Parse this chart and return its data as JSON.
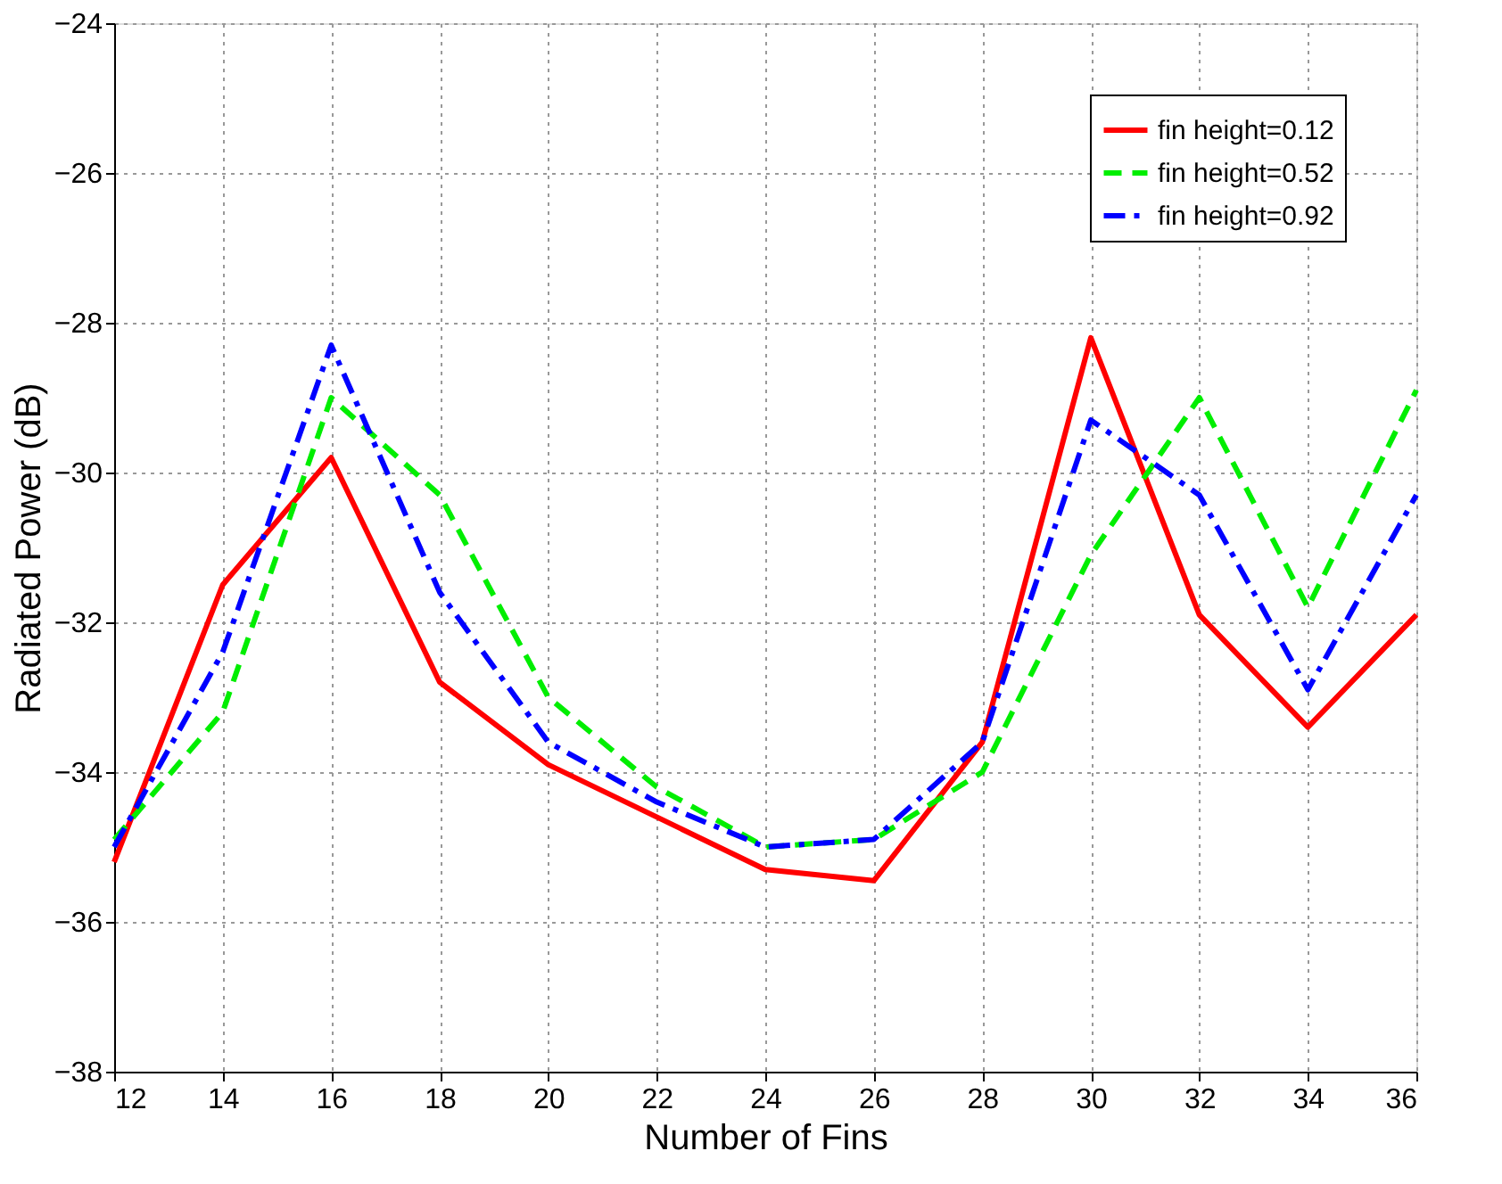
{
  "chart_data": {
    "type": "line",
    "xlabel": "Number of Fins",
    "ylabel": "Radiated Power (dB)",
    "x": [
      12,
      14,
      16,
      18,
      20,
      22,
      24,
      26,
      28,
      30,
      32,
      34,
      36
    ],
    "series": [
      {
        "name": "fin height=0.12",
        "color": "#ff0000",
        "line_style": "solid",
        "values": [
          -35.2,
          -31.5,
          -29.8,
          -32.8,
          -33.9,
          -34.6,
          -35.3,
          -35.45,
          -33.6,
          -28.2,
          -31.9,
          -33.4,
          -31.9
        ]
      },
      {
        "name": "fin height=0.52",
        "color": "#00ee00",
        "line_style": "dashed",
        "values": [
          -34.9,
          -33.2,
          -29.0,
          -30.3,
          -33.0,
          -34.2,
          -35.0,
          -34.9,
          -34.0,
          -31.1,
          -29.0,
          -31.8,
          -28.9
        ]
      },
      {
        "name": "fin height=0.92",
        "color": "#0000ff",
        "line_style": "dashdot",
        "values": [
          -35.0,
          -32.4,
          -28.3,
          -31.6,
          -33.6,
          -34.4,
          -35.0,
          -34.9,
          -33.6,
          -29.3,
          -30.3,
          -32.9,
          -30.3
        ]
      }
    ],
    "xlim": [
      12,
      36
    ],
    "xticks": [
      12,
      14,
      16,
      18,
      20,
      22,
      24,
      26,
      28,
      30,
      32,
      34,
      36
    ],
    "ylim": [
      -38,
      -24
    ],
    "yticks": [
      -38,
      -36,
      -34,
      -32,
      -30,
      -28,
      -26,
      -24
    ],
    "grid": true,
    "legend": "top right",
    "marker": "none"
  }
}
